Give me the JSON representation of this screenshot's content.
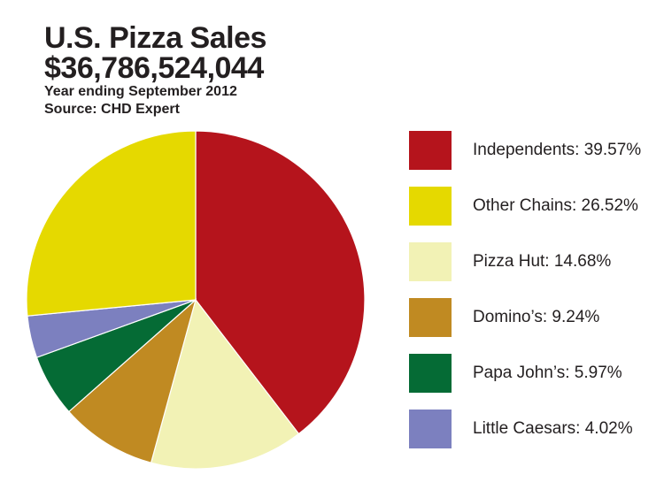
{
  "chart_data": {
    "type": "pie",
    "title": "U.S. Pizza Sales",
    "subtitle": "$36,786,524,044",
    "notes": [
      "Year ending September 2012",
      "Source: CHD Expert"
    ],
    "legend_position": "right",
    "slices": [
      {
        "name": "Independents",
        "value": 39.57,
        "label": "Independents: 39.57%",
        "color": "#b5141c"
      },
      {
        "name": "Other Chains",
        "value": 26.52,
        "label": "Other Chains: 26.52%",
        "color": "#e5d900"
      },
      {
        "name": "Pizza Hut",
        "value": 14.68,
        "label": "Pizza Hut: 14.68%",
        "color": "#f2f2b5"
      },
      {
        "name": "Domino's",
        "value": 9.24,
        "label": "Domino’s: 9.24%",
        "color": "#c08a22"
      },
      {
        "name": "Papa John's",
        "value": 5.97,
        "label": "Papa John’s: 5.97%",
        "color": "#056b35"
      },
      {
        "name": "Little Caesars",
        "value": 4.02,
        "label": "Little Caesars: 4.02%",
        "color": "#7c80bf"
      }
    ],
    "draw_order": [
      "Independents",
      "Pizza Hut",
      "Domino's",
      "Papa John's",
      "Little Caesars",
      "Other Chains"
    ]
  }
}
